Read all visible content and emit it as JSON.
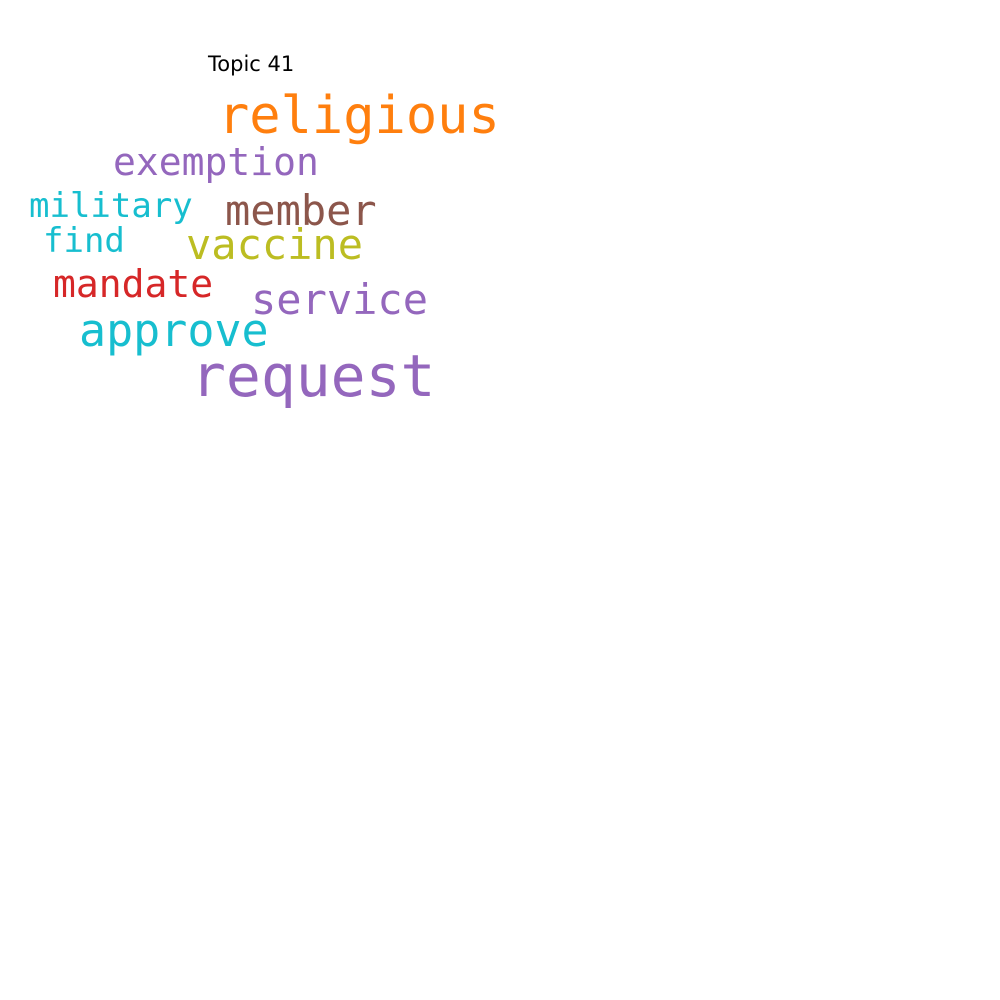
{
  "title": "Topic 41",
  "words": [
    {
      "key": "religious",
      "text": "religious",
      "color": "#ff7f0e"
    },
    {
      "key": "exemption",
      "text": "exemption",
      "color": "#9467bd"
    },
    {
      "key": "military",
      "text": "military",
      "color": "#17becf"
    },
    {
      "key": "member",
      "text": "member",
      "color": "#8c564b"
    },
    {
      "key": "find",
      "text": "find",
      "color": "#17becf"
    },
    {
      "key": "vaccine",
      "text": "vaccine",
      "color": "#bcbd22"
    },
    {
      "key": "mandate",
      "text": "mandate",
      "color": "#d62728"
    },
    {
      "key": "service",
      "text": "service",
      "color": "#9467bd"
    },
    {
      "key": "approve",
      "text": "approve",
      "color": "#17becf"
    },
    {
      "key": "request",
      "text": "request",
      "color": "#9467bd"
    }
  ]
}
